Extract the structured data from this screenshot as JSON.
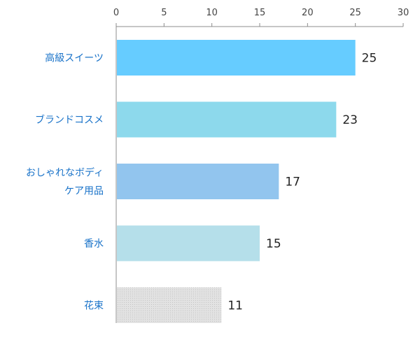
{
  "chart_data": {
    "type": "bar",
    "orientation": "horizontal",
    "title": "",
    "xlabel": "",
    "ylabel": "",
    "xlim": [
      0,
      30
    ],
    "ticks": [
      0,
      5,
      10,
      15,
      20,
      25,
      30
    ],
    "tick_labels": [
      "0",
      "5",
      "10",
      "15",
      "20",
      "25",
      "30"
    ],
    "x_axis_position": "top",
    "grid": false,
    "legend": false,
    "categories": [
      [
        "高級スイーツ"
      ],
      [
        "ブランドコスメ"
      ],
      [
        "おしゃれなボディ",
        "ケア用品"
      ],
      [
        "香水"
      ],
      [
        "花束"
      ]
    ],
    "values": [
      25,
      23,
      17,
      15,
      11
    ],
    "value_labels": [
      "25",
      "23",
      "17",
      "15",
      "11"
    ],
    "colors": [
      "#66ccff",
      "#8dd9ec",
      "#92c5ee",
      "#b5dfea",
      "#d9d9d9"
    ],
    "label_color": "#1a73c9"
  }
}
